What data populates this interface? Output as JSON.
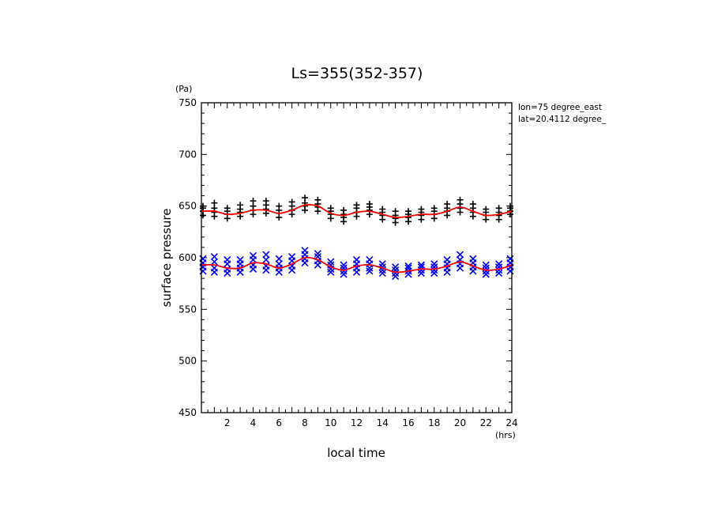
{
  "chart_data": {
    "type": "scatter",
    "title": "Ls=355(352-357)",
    "xlabel": "local time",
    "ylabel": "surface pressure",
    "x_unit": "(hrs)",
    "y_unit": "(Pa)",
    "xlim": [
      0,
      24
    ],
    "ylim": [
      450,
      750
    ],
    "x_ticks": [
      2,
      4,
      6,
      8,
      10,
      12,
      14,
      16,
      18,
      20,
      22,
      24
    ],
    "y_ticks": [
      450,
      500,
      550,
      600,
      650,
      700,
      750
    ],
    "annotations": [
      "lon=75 degree_east",
      "lat=20.4112 degree_"
    ],
    "grid": false,
    "series": [
      {
        "type": "scatter",
        "marker": "plus",
        "color": "#000000",
        "x": [
          0,
          1,
          2,
          3,
          4,
          5,
          6,
          7,
          8,
          9,
          10,
          11,
          12,
          13,
          14,
          15,
          16,
          17,
          18,
          19,
          20,
          21,
          22,
          23,
          24
        ],
        "y": [
          [
            641,
            645,
            648,
            650
          ],
          [
            640,
            644,
            648,
            653
          ],
          [
            638,
            642,
            645,
            648
          ],
          [
            640,
            644,
            647,
            651
          ],
          [
            642,
            646,
            650,
            655
          ],
          [
            643,
            647,
            651,
            655
          ],
          [
            639,
            643,
            646,
            650
          ],
          [
            642,
            646,
            650,
            654
          ],
          [
            646,
            650,
            653,
            658
          ],
          [
            645,
            649,
            652,
            656
          ],
          [
            638,
            642,
            645,
            648
          ],
          [
            635,
            639,
            642,
            646
          ],
          [
            640,
            644,
            648,
            651
          ],
          [
            642,
            646,
            649,
            652
          ],
          [
            637,
            641,
            644,
            647
          ],
          [
            634,
            638,
            641,
            645
          ],
          [
            635,
            639,
            642,
            645
          ],
          [
            637,
            641,
            644,
            647
          ],
          [
            638,
            642,
            645,
            648
          ],
          [
            641,
            645,
            648,
            652
          ],
          [
            644,
            648,
            652,
            656
          ],
          [
            640,
            644,
            648,
            652
          ],
          [
            637,
            641,
            644,
            647
          ],
          [
            637,
            641,
            644,
            648
          ],
          [
            642,
            645,
            648,
            650
          ]
        ]
      },
      {
        "type": "scatter",
        "marker": "x",
        "color": "#0000ff",
        "x": [
          0,
          1,
          2,
          3,
          4,
          5,
          6,
          7,
          8,
          9,
          10,
          11,
          12,
          13,
          14,
          15,
          16,
          17,
          18,
          19,
          20,
          21,
          22,
          23,
          24
        ],
        "y": [
          [
            587,
            591,
            595,
            599
          ],
          [
            586,
            590,
            596,
            601
          ],
          [
            585,
            589,
            594,
            598
          ],
          [
            586,
            590,
            594,
            598
          ],
          [
            589,
            593,
            598,
            602
          ],
          [
            588,
            592,
            598,
            603
          ],
          [
            586,
            590,
            594,
            599
          ],
          [
            588,
            592,
            597,
            601
          ],
          [
            595,
            599,
            603,
            607
          ],
          [
            593,
            597,
            601,
            604
          ],
          [
            586,
            589,
            593,
            596
          ],
          [
            584,
            587,
            590,
            593
          ],
          [
            586,
            590,
            594,
            598
          ],
          [
            587,
            590,
            594,
            598
          ],
          [
            585,
            588,
            591,
            594
          ],
          [
            582,
            585,
            588,
            591
          ],
          [
            584,
            587,
            590,
            592
          ],
          [
            585,
            588,
            591,
            593
          ],
          [
            585,
            588,
            591,
            594
          ],
          [
            586,
            590,
            594,
            598
          ],
          [
            590,
            594,
            598,
            603
          ],
          [
            587,
            591,
            595,
            599
          ],
          [
            584,
            587,
            590,
            593
          ],
          [
            585,
            588,
            591,
            594
          ],
          [
            587,
            591,
            595,
            599
          ]
        ]
      },
      {
        "type": "line",
        "color": "#ff0000",
        "x": [
          0,
          1,
          2,
          3,
          4,
          5,
          6,
          7,
          8,
          9,
          10,
          11,
          12,
          13,
          14,
          15,
          16,
          17,
          18,
          19,
          20,
          21,
          22,
          23,
          24
        ],
        "y": [
          645,
          645,
          642,
          643,
          646,
          646,
          643,
          646,
          651,
          650,
          643,
          641,
          644,
          645,
          642,
          639,
          640,
          642,
          642,
          645,
          649,
          645,
          641,
          642,
          645
        ]
      },
      {
        "type": "line",
        "color": "#ff0000",
        "x": [
          0,
          1,
          2,
          3,
          4,
          5,
          6,
          7,
          8,
          9,
          10,
          11,
          12,
          13,
          14,
          15,
          16,
          17,
          18,
          19,
          20,
          21,
          22,
          23,
          24
        ],
        "y": [
          593,
          593,
          590,
          590,
          595,
          594,
          590,
          594,
          600,
          598,
          591,
          588,
          592,
          593,
          590,
          586,
          587,
          589,
          589,
          592,
          596,
          592,
          588,
          589,
          593
        ]
      }
    ]
  }
}
